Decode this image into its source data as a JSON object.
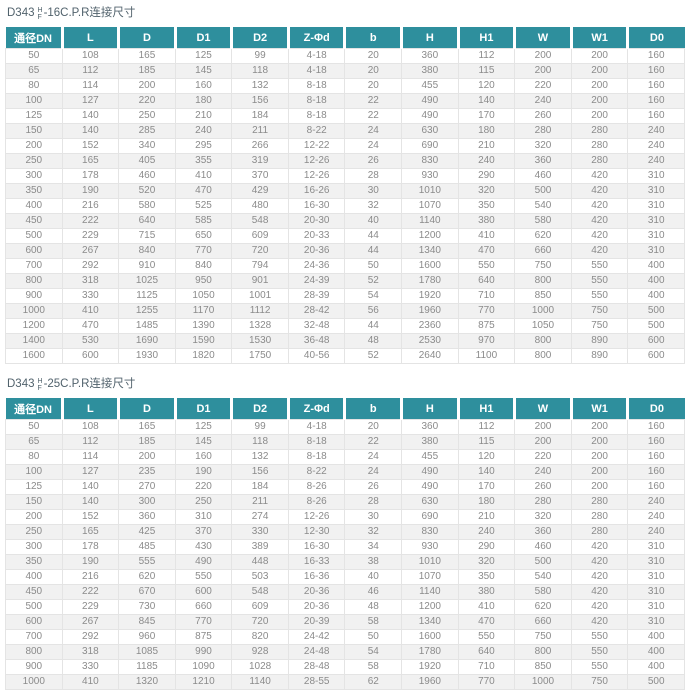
{
  "accent_color": "#2E8F9D",
  "tables": [
    {
      "title": {
        "prefix": "D343",
        "fraction_top": "H",
        "fraction_bottom": "F",
        "suffix": "-16C.P.R连接尺寸"
      },
      "columns": [
        "通径DN",
        "L",
        "D",
        "D1",
        "D2",
        "Z-Φd",
        "b",
        "H",
        "H1",
        "W",
        "W1",
        "D0"
      ],
      "rows": [
        [
          "50",
          "108",
          "165",
          "125",
          "99",
          "4-18",
          "20",
          "360",
          "112",
          "200",
          "200",
          "160"
        ],
        [
          "65",
          "112",
          "185",
          "145",
          "118",
          "4-18",
          "20",
          "380",
          "115",
          "200",
          "200",
          "160"
        ],
        [
          "80",
          "114",
          "200",
          "160",
          "132",
          "8-18",
          "20",
          "455",
          "120",
          "220",
          "200",
          "160"
        ],
        [
          "100",
          "127",
          "220",
          "180",
          "156",
          "8-18",
          "22",
          "490",
          "140",
          "240",
          "200",
          "160"
        ],
        [
          "125",
          "140",
          "250",
          "210",
          "184",
          "8-18",
          "22",
          "490",
          "170",
          "260",
          "200",
          "160"
        ],
        [
          "150",
          "140",
          "285",
          "240",
          "211",
          "8-22",
          "24",
          "630",
          "180",
          "280",
          "280",
          "240"
        ],
        [
          "200",
          "152",
          "340",
          "295",
          "266",
          "12-22",
          "24",
          "690",
          "210",
          "320",
          "280",
          "240"
        ],
        [
          "250",
          "165",
          "405",
          "355",
          "319",
          "12-26",
          "26",
          "830",
          "240",
          "360",
          "280",
          "240"
        ],
        [
          "300",
          "178",
          "460",
          "410",
          "370",
          "12-26",
          "28",
          "930",
          "290",
          "460",
          "420",
          "310"
        ],
        [
          "350",
          "190",
          "520",
          "470",
          "429",
          "16-26",
          "30",
          "1010",
          "320",
          "500",
          "420",
          "310"
        ],
        [
          "400",
          "216",
          "580",
          "525",
          "480",
          "16-30",
          "32",
          "1070",
          "350",
          "540",
          "420",
          "310"
        ],
        [
          "450",
          "222",
          "640",
          "585",
          "548",
          "20-30",
          "40",
          "1140",
          "380",
          "580",
          "420",
          "310"
        ],
        [
          "500",
          "229",
          "715",
          "650",
          "609",
          "20-33",
          "44",
          "1200",
          "410",
          "620",
          "420",
          "310"
        ],
        [
          "600",
          "267",
          "840",
          "770",
          "720",
          "20-36",
          "44",
          "1340",
          "470",
          "660",
          "420",
          "310"
        ],
        [
          "700",
          "292",
          "910",
          "840",
          "794",
          "24-36",
          "50",
          "1600",
          "550",
          "750",
          "550",
          "400"
        ],
        [
          "800",
          "318",
          "1025",
          "950",
          "901",
          "24-39",
          "52",
          "1780",
          "640",
          "800",
          "550",
          "400"
        ],
        [
          "900",
          "330",
          "1125",
          "1050",
          "1001",
          "28-39",
          "54",
          "1920",
          "710",
          "850",
          "550",
          "400"
        ],
        [
          "1000",
          "410",
          "1255",
          "1170",
          "1112",
          "28-42",
          "56",
          "1960",
          "770",
          "1000",
          "750",
          "500"
        ],
        [
          "1200",
          "470",
          "1485",
          "1390",
          "1328",
          "32-48",
          "44",
          "2360",
          "875",
          "1050",
          "750",
          "500"
        ],
        [
          "1400",
          "530",
          "1690",
          "1590",
          "1530",
          "36-48",
          "48",
          "2530",
          "970",
          "800",
          "890",
          "600"
        ],
        [
          "1600",
          "600",
          "1930",
          "1820",
          "1750",
          "40-56",
          "52",
          "2640",
          "1100",
          "800",
          "890",
          "600"
        ]
      ]
    },
    {
      "title": {
        "prefix": "D343",
        "fraction_top": "H",
        "fraction_bottom": "F",
        "suffix": "-25C.P.R连接尺寸"
      },
      "columns": [
        "通径DN",
        "L",
        "D",
        "D1",
        "D2",
        "Z-Φd",
        "b",
        "H",
        "H1",
        "W",
        "W1",
        "D0"
      ],
      "rows": [
        [
          "50",
          "108",
          "165",
          "125",
          "99",
          "4-18",
          "20",
          "360",
          "112",
          "200",
          "200",
          "160"
        ],
        [
          "65",
          "112",
          "185",
          "145",
          "118",
          "8-18",
          "22",
          "380",
          "115",
          "200",
          "200",
          "160"
        ],
        [
          "80",
          "114",
          "200",
          "160",
          "132",
          "8-18",
          "24",
          "455",
          "120",
          "220",
          "200",
          "160"
        ],
        [
          "100",
          "127",
          "235",
          "190",
          "156",
          "8-22",
          "24",
          "490",
          "140",
          "240",
          "200",
          "160"
        ],
        [
          "125",
          "140",
          "270",
          "220",
          "184",
          "8-26",
          "26",
          "490",
          "170",
          "260",
          "200",
          "160"
        ],
        [
          "150",
          "140",
          "300",
          "250",
          "211",
          "8-26",
          "28",
          "630",
          "180",
          "280",
          "280",
          "240"
        ],
        [
          "200",
          "152",
          "360",
          "310",
          "274",
          "12-26",
          "30",
          "690",
          "210",
          "320",
          "280",
          "240"
        ],
        [
          "250",
          "165",
          "425",
          "370",
          "330",
          "12-30",
          "32",
          "830",
          "240",
          "360",
          "280",
          "240"
        ],
        [
          "300",
          "178",
          "485",
          "430",
          "389",
          "16-30",
          "34",
          "930",
          "290",
          "460",
          "420",
          "310"
        ],
        [
          "350",
          "190",
          "555",
          "490",
          "448",
          "16-33",
          "38",
          "1010",
          "320",
          "500",
          "420",
          "310"
        ],
        [
          "400",
          "216",
          "620",
          "550",
          "503",
          "16-36",
          "40",
          "1070",
          "350",
          "540",
          "420",
          "310"
        ],
        [
          "450",
          "222",
          "670",
          "600",
          "548",
          "20-36",
          "46",
          "1140",
          "380",
          "580",
          "420",
          "310"
        ],
        [
          "500",
          "229",
          "730",
          "660",
          "609",
          "20-36",
          "48",
          "1200",
          "410",
          "620",
          "420",
          "310"
        ],
        [
          "600",
          "267",
          "845",
          "770",
          "720",
          "20-39",
          "58",
          "1340",
          "470",
          "660",
          "420",
          "310"
        ],
        [
          "700",
          "292",
          "960",
          "875",
          "820",
          "24-42",
          "50",
          "1600",
          "550",
          "750",
          "550",
          "400"
        ],
        [
          "800",
          "318",
          "1085",
          "990",
          "928",
          "24-48",
          "54",
          "1780",
          "640",
          "800",
          "550",
          "400"
        ],
        [
          "900",
          "330",
          "1185",
          "1090",
          "1028",
          "28-48",
          "58",
          "1920",
          "710",
          "850",
          "550",
          "400"
        ],
        [
          "1000",
          "410",
          "1320",
          "1210",
          "1140",
          "28-55",
          "62",
          "1960",
          "770",
          "1000",
          "750",
          "500"
        ]
      ]
    }
  ]
}
